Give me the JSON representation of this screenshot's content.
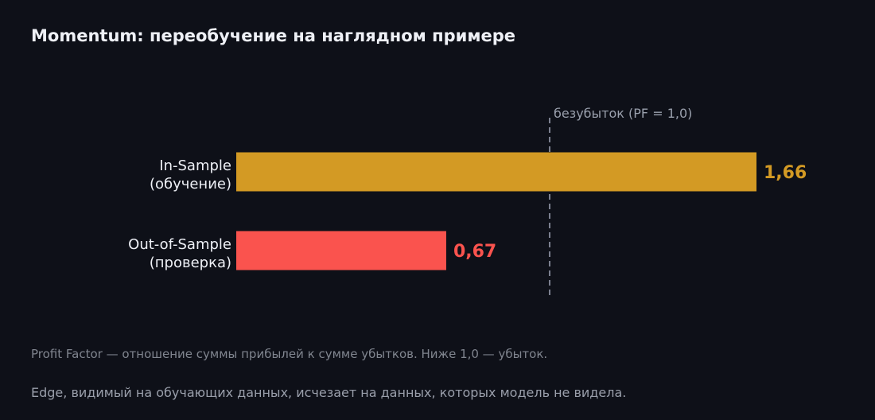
{
  "chart_data": {
    "type": "bar",
    "orientation": "horizontal",
    "title": "Momentum: переобучение на наглядном примере",
    "categories": [
      [
        "In-Sample",
        "(обучение)"
      ],
      [
        "Out-of-Sample",
        "(проверка)"
      ]
    ],
    "values": [
      1.66,
      0.67
    ],
    "value_labels": [
      "1,66",
      "0,67"
    ],
    "colors": [
      "#d39a24",
      "#fa534e"
    ],
    "xlim": [
      0,
      1.66
    ],
    "reference_line": {
      "value": 1.0,
      "label": "безубыток (PF = 1,0)",
      "color": "#7c8090"
    },
    "grid": false,
    "footnotes": [
      "Profit Factor — отношение суммы прибылей к сумме убытков. Ниже 1,0 — убыток.",
      "Edge, видимый на обучающих данных, исчезает на данных, которых модель не видела."
    ]
  }
}
